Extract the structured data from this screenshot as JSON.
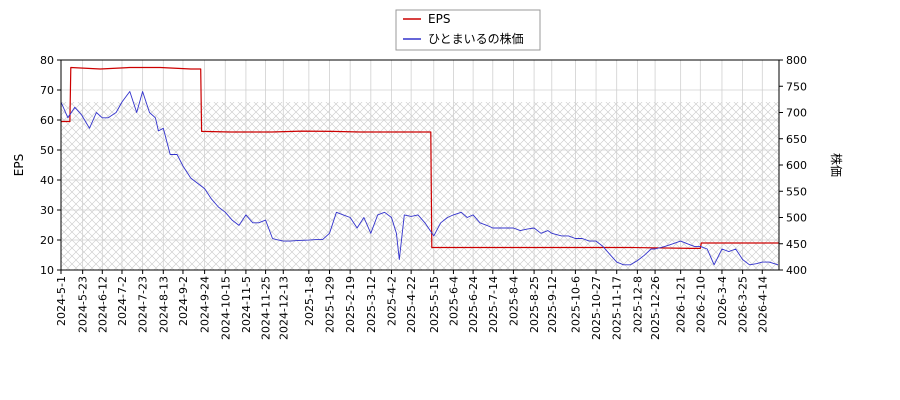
{
  "chart_data": {
    "type": "line",
    "title": "",
    "xlabel": "",
    "ylabel_left": "EPS",
    "ylabel_right": "株価",
    "ylim_left": [
      10,
      80
    ],
    "ylim_right": [
      400,
      800
    ],
    "yticks_left": [
      10,
      20,
      30,
      40,
      50,
      60,
      70,
      80
    ],
    "yticks_right": [
      400,
      450,
      500,
      550,
      600,
      650,
      700,
      750,
      800
    ],
    "xlim": [
      "2024-05-01",
      "2026-05-01"
    ],
    "xticks": [
      "2024-5-1",
      "2024-5-23",
      "2024-6-12",
      "2024-7-2",
      "2024-7-23",
      "2024-8-13",
      "2024-9-2",
      "2024-9-24",
      "2024-10-15",
      "2024-11-5",
      "2024-11-25",
      "2024-12-13",
      "2025-1-8",
      "2025-1-29",
      "2025-2-19",
      "2025-3-12",
      "2025-4-2",
      "2025-4-22",
      "2025-5-15",
      "2025-6-4",
      "2025-6-24",
      "2025-7-14",
      "2025-8-4",
      "2025-8-25",
      "2025-9-12",
      "2025-10-6",
      "2025-10-27",
      "2025-11-17",
      "2025-12-8",
      "2025-12-26",
      "2026-1-21",
      "2026-2-10",
      "2026-3-4",
      "2026-3-25",
      "2026-4-14"
    ],
    "grid": true,
    "legend_placement": "top-center",
    "price_band_right": [
      400,
      720
    ],
    "series": [
      {
        "name": "EPS",
        "axis": "left",
        "color": "#cc0000",
        "x": [
          "2024-05-01",
          "2024-05-10",
          "2024-05-11",
          "2024-06-10",
          "2024-07-10",
          "2024-08-10",
          "2024-09-10",
          "2024-09-20",
          "2024-09-21",
          "2024-10-20",
          "2024-12-01",
          "2025-01-01",
          "2025-02-01",
          "2025-03-01",
          "2025-04-01",
          "2025-05-12",
          "2025-05-13",
          "2025-06-01",
          "2025-08-01",
          "2025-10-01",
          "2025-12-01",
          "2026-02-01",
          "2026-02-10",
          "2026-02-11",
          "2026-03-01",
          "2026-05-01"
        ],
        "values": [
          59.5,
          59.5,
          77.5,
          77.0,
          77.5,
          77.5,
          77.0,
          77.0,
          56.2,
          56.0,
          56.0,
          56.3,
          56.2,
          56.0,
          56.0,
          56.0,
          17.5,
          17.5,
          17.5,
          17.5,
          17.5,
          17.2,
          17.2,
          19.0,
          19.0,
          19.0
        ]
      },
      {
        "name": "ひとまいるの株価",
        "axis": "right",
        "color": "#3333cc",
        "x": [
          "2024-05-01",
          "2024-05-08",
          "2024-05-15",
          "2024-05-22",
          "2024-05-30",
          "2024-06-06",
          "2024-06-12",
          "2024-06-18",
          "2024-06-26",
          "2024-07-02",
          "2024-07-10",
          "2024-07-17",
          "2024-07-23",
          "2024-07-30",
          "2024-08-05",
          "2024-08-08",
          "2024-08-13",
          "2024-08-20",
          "2024-08-27",
          "2024-09-02",
          "2024-09-10",
          "2024-09-17",
          "2024-09-24",
          "2024-10-01",
          "2024-10-08",
          "2024-10-15",
          "2024-10-22",
          "2024-10-29",
          "2024-11-05",
          "2024-11-12",
          "2024-11-18",
          "2024-11-25",
          "2024-12-02",
          "2024-12-06",
          "2024-12-13",
          "2024-12-20",
          "2024-12-27",
          "2025-01-08",
          "2025-01-15",
          "2025-01-22",
          "2025-01-29",
          "2025-02-05",
          "2025-02-12",
          "2025-02-19",
          "2025-02-26",
          "2025-03-05",
          "2025-03-12",
          "2025-03-19",
          "2025-03-26",
          "2025-04-02",
          "2025-04-07",
          "2025-04-10",
          "2025-04-15",
          "2025-04-22",
          "2025-04-29",
          "2025-05-06",
          "2025-05-15",
          "2025-05-22",
          "2025-05-29",
          "2025-06-04",
          "2025-06-12",
          "2025-06-18",
          "2025-06-24",
          "2025-07-01",
          "2025-07-08",
          "2025-07-14",
          "2025-07-22",
          "2025-07-29",
          "2025-08-04",
          "2025-08-11",
          "2025-08-18",
          "2025-08-25",
          "2025-09-01",
          "2025-09-08",
          "2025-09-12",
          "2025-09-22",
          "2025-09-29",
          "2025-10-06",
          "2025-10-13",
          "2025-10-20",
          "2025-10-27",
          "2025-11-03",
          "2025-11-10",
          "2025-11-17",
          "2025-11-24",
          "2025-12-01",
          "2025-12-08",
          "2025-12-15",
          "2025-12-22",
          "2025-12-26",
          "2026-01-05",
          "2026-01-13",
          "2026-01-21",
          "2026-01-28",
          "2026-02-04",
          "2026-02-10",
          "2026-02-17",
          "2026-02-24",
          "2026-03-04",
          "2026-03-11",
          "2026-03-18",
          "2026-03-25",
          "2026-04-01",
          "2026-04-08",
          "2026-04-14",
          "2026-04-21",
          "2026-04-30"
        ],
        "values": [
          720,
          690,
          710,
          695,
          670,
          700,
          690,
          690,
          700,
          720,
          740,
          700,
          740,
          700,
          690,
          665,
          670,
          620,
          620,
          598,
          575,
          565,
          555,
          535,
          520,
          510,
          495,
          485,
          505,
          490,
          490,
          495,
          460,
          458,
          455,
          455,
          456,
          457,
          458,
          458,
          470,
          510,
          505,
          500,
          480,
          500,
          470,
          505,
          510,
          500,
          470,
          420,
          505,
          502,
          505,
          490,
          465,
          490,
          500,
          505,
          510,
          500,
          505,
          490,
          485,
          480,
          480,
          480,
          480,
          475,
          478,
          480,
          470,
          475,
          470,
          465,
          465,
          460,
          460,
          455,
          455,
          445,
          430,
          415,
          410,
          410,
          418,
          428,
          440,
          440,
          445,
          450,
          455,
          450,
          445,
          445,
          440,
          410,
          440,
          435,
          440,
          420,
          410,
          412,
          415,
          415,
          410
        ]
      }
    ]
  }
}
